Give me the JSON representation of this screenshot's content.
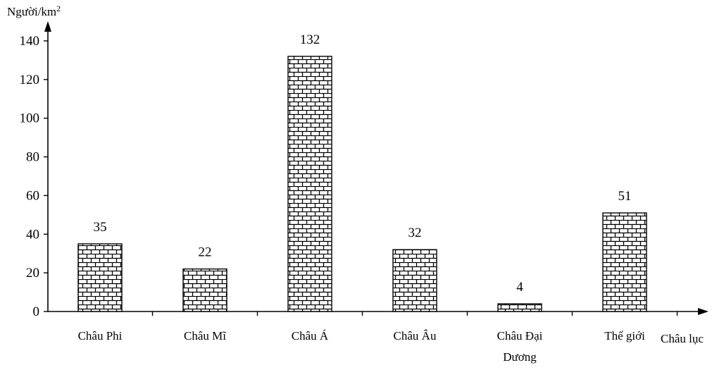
{
  "chart_data": {
    "type": "bar",
    "ylabel_prefix": "Người/km",
    "ylabel_sup": "2",
    "xlabel": "Châu lục",
    "categories": [
      [
        "Châu Phi"
      ],
      [
        "Châu Mĩ"
      ],
      [
        "Châu Á"
      ],
      [
        "Châu Âu"
      ],
      [
        "Châu Đại",
        "Dương"
      ],
      [
        "Thế giới"
      ]
    ],
    "values": [
      35,
      22,
      132,
      32,
      4,
      51
    ],
    "ylim": [
      0,
      140
    ],
    "yticks": [
      0,
      20,
      40,
      60,
      80,
      100,
      120,
      140
    ],
    "grid": false,
    "bar_pattern": "brick"
  }
}
